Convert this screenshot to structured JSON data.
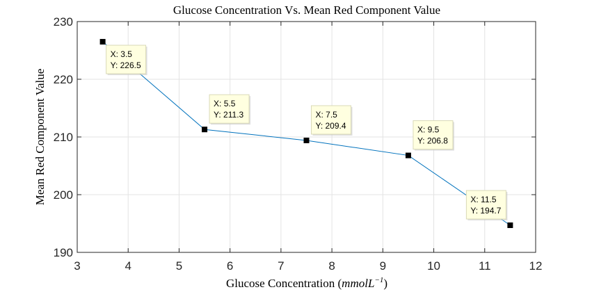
{
  "chart_data": {
    "type": "line",
    "title": "Glucose Concentration Vs. Mean Red Component Value",
    "xlabel": "Glucose Concentration",
    "xlabel_unit_base": "mmolL",
    "xlabel_unit_exp": "−1",
    "ylabel": "Mean Red Component Value",
    "xlim": [
      3,
      12
    ],
    "ylim": [
      190,
      230
    ],
    "xticks": [
      "3",
      "4",
      "5",
      "6",
      "7",
      "8",
      "9",
      "10",
      "11",
      "12"
    ],
    "yticks": [
      "190",
      "200",
      "210",
      "220",
      "230"
    ],
    "grid": true,
    "series": [
      {
        "x": [
          3.5,
          5.5,
          7.5,
          9.5,
          11.5
        ],
        "y": [
          226.5,
          211.3,
          209.4,
          206.8,
          194.7
        ],
        "color": "#0072BD",
        "marker_color": "#000000"
      }
    ],
    "datatips": [
      {
        "x": 3.5,
        "y": 226.5,
        "x_label": "X: 3.5",
        "y_label": "Y: 226.5"
      },
      {
        "x": 5.5,
        "y": 211.3,
        "x_label": "X: 5.5",
        "y_label": "Y: 211.3"
      },
      {
        "x": 7.5,
        "y": 209.4,
        "x_label": "X: 7.5",
        "y_label": "Y: 209.4"
      },
      {
        "x": 9.5,
        "y": 206.8,
        "x_label": "X: 9.5",
        "y_label": "Y: 206.8"
      },
      {
        "x": 11.5,
        "y": 194.7,
        "x_label": "X: 11.5",
        "y_label": "Y: 194.7"
      }
    ]
  }
}
